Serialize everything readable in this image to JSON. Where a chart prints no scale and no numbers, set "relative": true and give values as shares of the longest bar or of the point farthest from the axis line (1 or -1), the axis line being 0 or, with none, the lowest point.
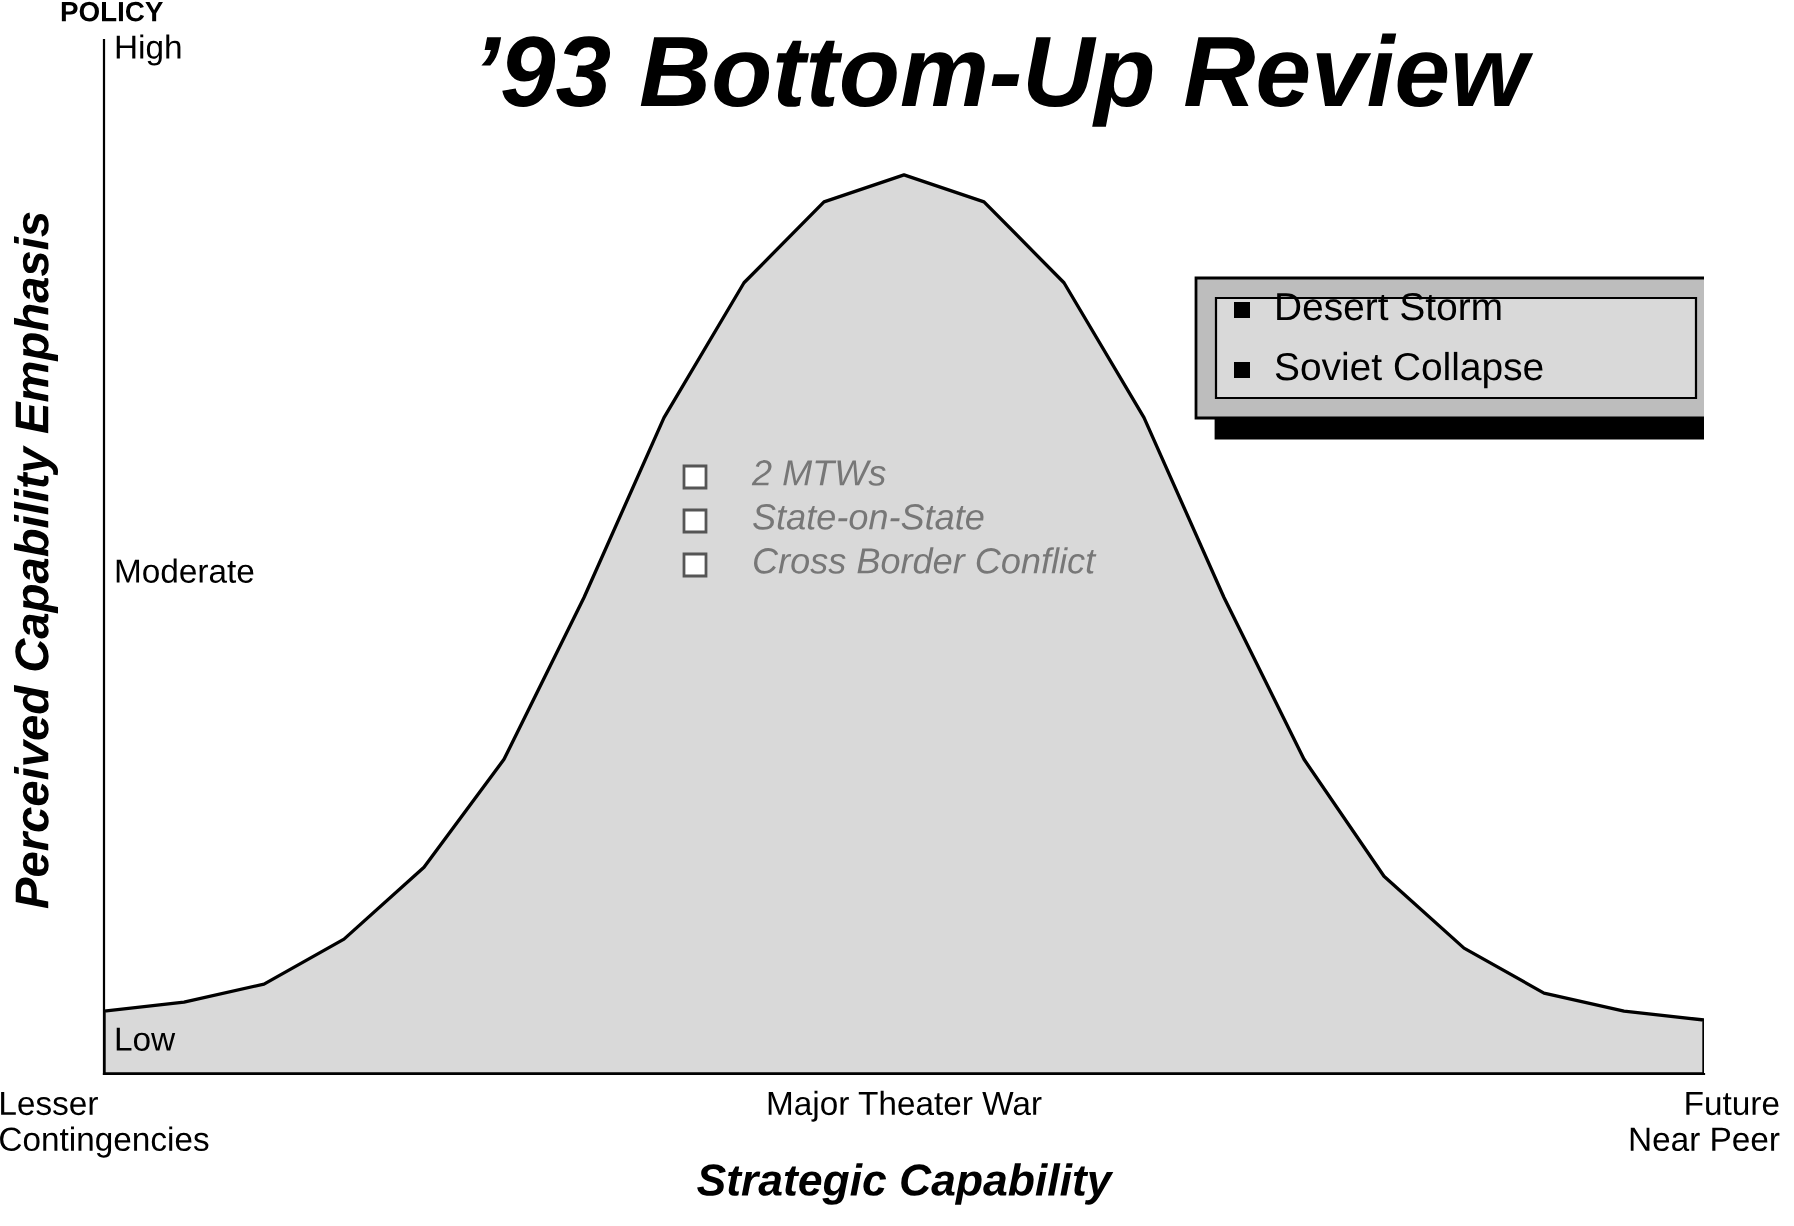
{
  "chart_data": {
    "type": "area",
    "relative": true,
    "title": "’93 Bottom-Up Review",
    "xlabel": "Strategic Capability",
    "ylabel": "Perceived Capability Emphasis",
    "categories": [
      "Lesser\nContingencies",
      null,
      null,
      null,
      null,
      null,
      null,
      null,
      null,
      null,
      "Major Theater War",
      null,
      null,
      null,
      null,
      null,
      null,
      null,
      null,
      null,
      "Future\nNear Peer"
    ],
    "series": [
      {
        "color": "#d9d9d9",
        "values": [
          0.07,
          0.08,
          0.1,
          0.15,
          0.23,
          0.35,
          0.53,
          0.73,
          0.88,
          0.97,
          1,
          0.97,
          0.88,
          0.73,
          0.53,
          0.35,
          0.22,
          0.14,
          0.09,
          0.07,
          0.06
        ]
      }
    ],
    "annotations": [
      "POLICY",
      "High",
      "Moderate",
      "Low",
      "Desert Storm",
      "Soviet Collapse",
      "2 MTWs",
      "State-on-State",
      "Cross Border Conflict"
    ]
  }
}
